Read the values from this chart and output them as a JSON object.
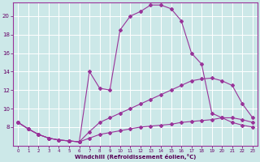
{
  "xlabel": "Windchill (Refroidissement éolien,°C)",
  "bg_color": "#cce8e8",
  "line_color": "#993399",
  "grid_color": "#ffffff",
  "xlim": [
    -0.5,
    23.5
  ],
  "ylim": [
    6,
    21.5
  ],
  "yticks": [
    8,
    10,
    12,
    14,
    16,
    18,
    20
  ],
  "xticks": [
    0,
    1,
    2,
    3,
    4,
    5,
    6,
    7,
    8,
    9,
    10,
    11,
    12,
    13,
    14,
    15,
    16,
    17,
    18,
    19,
    20,
    21,
    22,
    23
  ],
  "x": [
    0,
    1,
    2,
    3,
    4,
    5,
    6,
    7,
    8,
    9,
    10,
    11,
    12,
    13,
    14,
    15,
    16,
    17,
    18,
    19,
    20,
    21,
    22,
    23
  ],
  "s1_y": [
    8.5,
    7.8,
    7.2,
    6.8,
    6.6,
    6.5,
    6.4,
    6.8,
    7.2,
    7.4,
    7.6,
    7.8,
    8.0,
    8.1,
    8.2,
    8.3,
    8.5,
    8.6,
    8.7,
    8.8,
    9.0,
    9.0,
    8.8,
    8.5
  ],
  "s2_y": [
    8.5,
    7.8,
    7.2,
    6.8,
    6.6,
    6.5,
    6.4,
    7.5,
    8.5,
    9.0,
    9.5,
    10.0,
    10.5,
    11.0,
    11.5,
    12.0,
    12.5,
    13.0,
    13.2,
    13.3,
    13.0,
    12.5,
    10.5,
    9.0
  ],
  "s3_y": [
    8.5,
    7.8,
    7.2,
    6.8,
    6.6,
    6.5,
    6.4,
    14.0,
    12.2,
    12.0,
    18.5,
    20.0,
    20.5,
    21.2,
    21.2,
    20.8,
    19.5,
    16.0,
    14.8,
    9.5,
    9.0,
    8.5,
    8.2,
    8.0
  ]
}
